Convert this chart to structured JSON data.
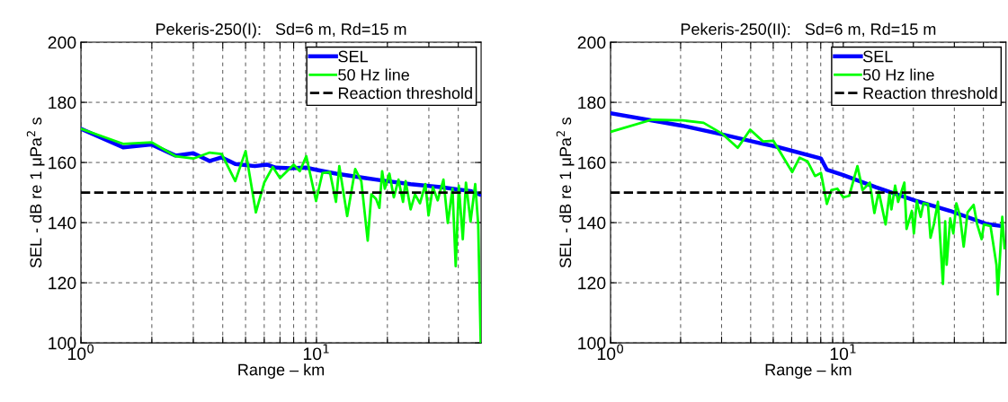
{
  "chart_data": [
    {
      "type": "line",
      "title": "Pekeris-250(I):   Sd=6 m, Rd=15 m",
      "xlabel": "Range – km",
      "ylabel": "SEL - dB re 1 μPa$^{2}$ s",
      "log": "x",
      "xlim": [
        1,
        50
      ],
      "ylim": [
        100,
        200
      ],
      "xticks": [
        {
          "value": 1,
          "label": "10$^{0}$"
        },
        {
          "value": 2,
          "label": null
        },
        {
          "value": 3,
          "label": null
        },
        {
          "value": 4,
          "label": null
        },
        {
          "value": 5,
          "label": null
        },
        {
          "value": 6,
          "label": null
        },
        {
          "value": 7,
          "label": null
        },
        {
          "value": 8,
          "label": null
        },
        {
          "value": 9,
          "label": null
        },
        {
          "value": 10,
          "label": "10$^{1}$"
        },
        {
          "value": 20,
          "label": null
        },
        {
          "value": 30,
          "label": null
        },
        {
          "value": 40,
          "label": null
        }
      ],
      "yticks": [
        100,
        120,
        140,
        160,
        180,
        200
      ],
      "grid": true,
      "legend": "top right",
      "line_style": "solid",
      "marker": "none",
      "series": [
        {
          "name": "SEL",
          "color": "#0000ff",
          "x": [
            1,
            1.51,
            1.99,
            2.52,
            3.0,
            3.52,
            3.96,
            4.52,
            5.47,
            6.15,
            6.71,
            7.78,
            9.0,
            10.1,
            12.1,
            16.2,
            18.7,
            25.1,
            33.6,
            45.1,
            49.2
          ],
          "values": [
            171.2,
            165,
            166,
            162.3,
            163.1,
            160.5,
            161.7,
            159.5,
            158.8,
            159.3,
            158.3,
            158.1,
            158.3,
            157.5,
            156.3,
            154.8,
            154.1,
            152.8,
            151.8,
            150.5,
            149.4
          ]
        },
        {
          "name": "50 Hz line",
          "color": "#00ff00",
          "x": [
            1,
            1.51,
            2,
            2.52,
            3,
            3.52,
            3.96,
            4.52,
            5.0,
            5.53,
            6.0,
            6.52,
            7.0,
            8.0,
            8.5,
            9.05,
            9.96,
            10.6,
            11.4,
            12.1,
            12.5,
            13.5,
            14.6,
            15.5,
            16.5,
            17.1,
            17.9,
            18.5,
            19.0,
            19.5,
            20.4,
            21.3,
            22.3,
            23.3,
            23.9,
            25.1,
            26.2,
            27.5,
            29.0,
            29.9,
            31.2,
            32.7,
            34.6,
            36.1,
            37.8,
            39.0,
            40.2,
            41.8,
            43.1,
            45.1,
            47.2,
            48.6,
            49.8
          ],
          "values": [
            171.2,
            166.2,
            166.7,
            162.1,
            161.3,
            163.3,
            162.8,
            153.8,
            163.8,
            143.4,
            153.3,
            158.5,
            154.8,
            159.3,
            157.1,
            162.1,
            147.2,
            156.5,
            156.8,
            146.9,
            158.8,
            142.2,
            157.8,
            153.8,
            134,
            149.4,
            147.9,
            144.9,
            157.1,
            151.3,
            156.3,
            148.4,
            154.3,
            146.9,
            153.8,
            144.4,
            149.4,
            146.4,
            152.8,
            142.4,
            151.8,
            147.4,
            154.3,
            139.9,
            151.3,
            125.5,
            152.3,
            134.5,
            153.3,
            140.4,
            152.8,
            139.4,
            100
          ]
        }
      ],
      "ref_lines": [
        {
          "axis": "y",
          "value": 150,
          "label": "Reaction threshold",
          "color": "#000000",
          "line_style": "dashed"
        }
      ]
    },
    {
      "type": "line",
      "title": "Pekeris-250(II):   Sd=6 m, Rd=15 m",
      "xlabel": "Range – km",
      "ylabel": "SEL - dB re 1 μPa$^{2}$ s",
      "log": "x",
      "xlim": [
        1,
        50
      ],
      "ylim": [
        100,
        200
      ],
      "xticks": [
        {
          "value": 1,
          "label": "10$^{0}$"
        },
        {
          "value": 2,
          "label": null
        },
        {
          "value": 3,
          "label": null
        },
        {
          "value": 4,
          "label": null
        },
        {
          "value": 5,
          "label": null
        },
        {
          "value": 6,
          "label": null
        },
        {
          "value": 7,
          "label": null
        },
        {
          "value": 8,
          "label": null
        },
        {
          "value": 9,
          "label": null
        },
        {
          "value": 10,
          "label": "10$^{1}$"
        },
        {
          "value": 20,
          "label": null
        },
        {
          "value": 30,
          "label": null
        },
        {
          "value": 40,
          "label": null
        }
      ],
      "yticks": [
        100,
        120,
        140,
        160,
        180,
        200
      ],
      "grid": true,
      "legend": "top right",
      "line_style": "solid",
      "marker": "none",
      "series": [
        {
          "name": "SEL",
          "color": "#0000ff",
          "x": [
            1,
            2.04,
            3.0,
            4.52,
            5.08,
            8.02,
            8.5,
            10,
            13.8,
            20.3,
            28.8,
            41.0,
            47.5
          ],
          "values": [
            176.4,
            172.2,
            169.4,
            166.2,
            165.4,
            161.3,
            157.6,
            155.8,
            151.8,
            147.4,
            143.9,
            139.6,
            138.9
          ]
        },
        {
          "name": "50 Hz line",
          "color": "#00ff00",
          "x": [
            1,
            1.5,
            2.04,
            2.51,
            3,
            3.52,
            3.98,
            4.52,
            5.01,
            6.03,
            6.49,
            7.03,
            7.56,
            8.02,
            8.5,
            8.89,
            9.43,
            10,
            10.6,
            11.5,
            12.1,
            13.0,
            13.6,
            14.2,
            15.2,
            15.8,
            16.1,
            16.7,
            17.2,
            18.3,
            18.7,
            19.7,
            20.1,
            20.7,
            21.5,
            22.1,
            23.1,
            23.7,
            24.5,
            25.5,
            26.8,
            27.4,
            27.8,
            28.8,
            29.7,
            30.6,
            31.7,
            32.9,
            34.2,
            36.3,
            37.6,
            39.3,
            40.2,
            42.9,
            45.5,
            46.1,
            48.2,
            49.3
          ],
          "values": [
            170.2,
            174.2,
            174.0,
            173.2,
            169.7,
            164.9,
            170.9,
            167.0,
            167.2,
            156.8,
            161.6,
            160.3,
            155.5,
            156.5,
            146.2,
            150.8,
            151.3,
            148.4,
            148.9,
            158.8,
            150.8,
            153.3,
            143.2,
            150.3,
            139.4,
            149.8,
            144.4,
            152.3,
            146.9,
            153.3,
            137.9,
            143.9,
            136.4,
            147.2,
            141.9,
            146.4,
            146.2,
            135.0,
            139.4,
            146.9,
            119.6,
            140.4,
            126.0,
            141.4,
            136.4,
            146.4,
            142.4,
            132.0,
            143.4,
            145.9,
            139.4,
            134.5,
            139.4,
            138.9,
            126.0,
            116.1,
            141.9,
            131.5
          ]
        }
      ],
      "ref_lines": [
        {
          "axis": "y",
          "value": 150,
          "label": "Reaction threshold",
          "color": "#000000",
          "line_style": "dashed"
        }
      ]
    }
  ]
}
